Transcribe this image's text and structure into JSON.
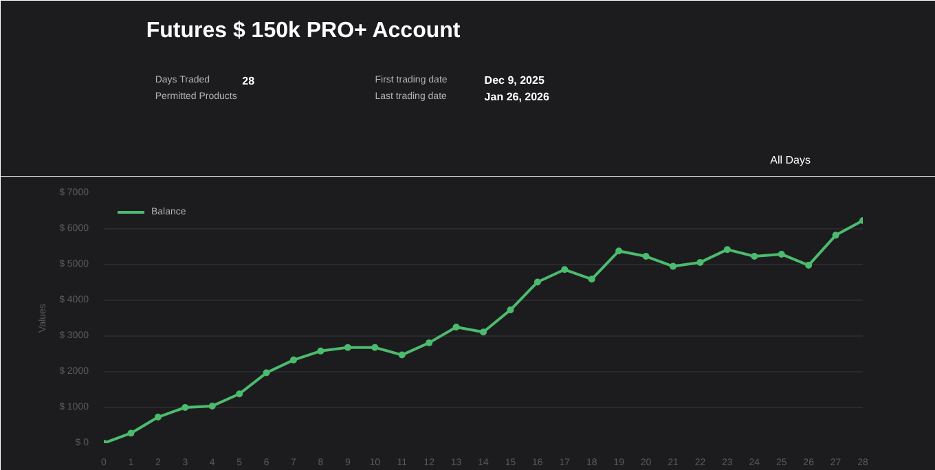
{
  "chart_data": {
    "type": "line",
    "title": "Futures $ 150k PRO+ Account",
    "annotations": [
      "Days Traded",
      "28",
      "Permitted Products",
      "First trading date",
      "Dec 9, 2025",
      "Last trading date",
      "Jan 26, 2026",
      "All Days"
    ],
    "ylabel": "Values",
    "x": [
      0,
      1,
      2,
      3,
      4,
      5,
      6,
      7,
      8,
      9,
      10,
      11,
      12,
      13,
      14,
      15,
      16,
      17,
      18,
      19,
      20,
      21,
      22,
      23,
      24,
      25,
      26,
      27,
      28
    ],
    "series": [
      {
        "name": "Balance",
        "color": "#4cbb6e",
        "values": [
          0,
          280,
          730,
          1000,
          1040,
          1380,
          1970,
          2330,
          2580,
          2680,
          2680,
          2470,
          2810,
          3250,
          3110,
          3730,
          4510,
          4860,
          4590,
          5380,
          5230,
          4950,
          5060,
          5420,
          5230,
          5290,
          4980,
          5820,
          6230
        ]
      }
    ],
    "xlim": [
      0,
      28
    ],
    "xticks": [
      0,
      1,
      2,
      3,
      4,
      5,
      6,
      7,
      8,
      9,
      10,
      11,
      12,
      13,
      14,
      15,
      16,
      17,
      18,
      19,
      20,
      21,
      22,
      23,
      24,
      25,
      26,
      27,
      28
    ],
    "ylim": [
      0,
      7000
    ],
    "yticks": [
      {
        "value": 0,
        "label": "$ 0"
      },
      {
        "value": 1000,
        "label": "$ 1000"
      },
      {
        "value": 2000,
        "label": "$ 2000"
      },
      {
        "value": 3000,
        "label": "$ 3000"
      },
      {
        "value": 4000,
        "label": "$ 4000"
      },
      {
        "value": 5000,
        "label": "$ 5000"
      },
      {
        "value": 6000,
        "label": "$ 6000"
      },
      {
        "value": 7000,
        "label": "$ 7000"
      }
    ],
    "grid": "y",
    "legend": "top left",
    "marker": "circle",
    "line_style": "solid"
  }
}
